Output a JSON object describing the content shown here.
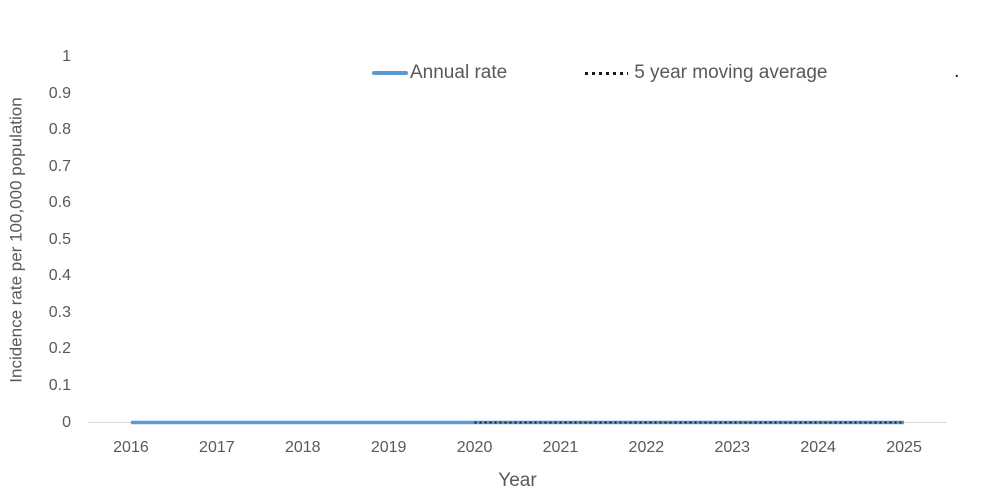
{
  "chart_data": {
    "type": "line",
    "title": "",
    "xlabel": "Year",
    "ylabel": "Incidence rate per 100,000 population",
    "categories": [
      2016,
      2017,
      2018,
      2019,
      2020,
      2021,
      2022,
      2023,
      2024,
      2025
    ],
    "series": [
      {
        "name": "Annual rate",
        "color": "#5B9BD5",
        "line_style": "solid",
        "x": [
          2016,
          2017,
          2018,
          2019,
          2020,
          2021,
          2022,
          2023,
          2024,
          2025
        ],
        "values": [
          0,
          0,
          0,
          0,
          0,
          0,
          0,
          0,
          0,
          0
        ]
      },
      {
        "name": "5 year moving average",
        "color": "#1a1a1a",
        "line_style": "dotted",
        "x": [
          2020,
          2021,
          2022,
          2023,
          2024,
          2025
        ],
        "values": [
          0,
          0,
          0,
          0,
          0,
          0
        ]
      }
    ],
    "ylim": [
      0,
      1
    ],
    "yticks": [
      0,
      0.1,
      0.2,
      0.3,
      0.4,
      0.5,
      0.6,
      0.7,
      0.8,
      0.9,
      1
    ],
    "ytick_labels": [
      "0",
      "0.1",
      "0.2",
      "0.3",
      "0.4",
      "0.5",
      "0.6",
      "0.7",
      "0.8",
      "0.9",
      "1"
    ],
    "xtick_labels": [
      "2016",
      "2017",
      "2018",
      "2019",
      "2020",
      "2021",
      "2022",
      "2023",
      "2024",
      "2025"
    ],
    "grid": false,
    "legend_position": "top-center"
  },
  "legend": {
    "items": [
      {
        "label": "Annual rate",
        "marker": "solid-blue-line"
      },
      {
        "label": "5 year moving average",
        "marker": "dotted-black-line"
      }
    ],
    "stray_text": "."
  },
  "colors": {
    "annual_rate_line": "#5B9BD5",
    "moving_average_line": "#1a1a1a",
    "axis_line": "#D9D9D9",
    "text": "#595959",
    "background": "#FFFFFF"
  }
}
